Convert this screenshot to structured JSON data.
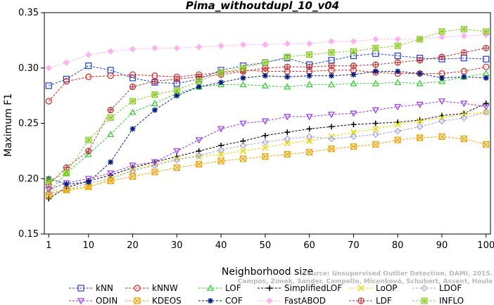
{
  "chart_data": {
    "type": "line",
    "title": "Pima_withoutdupl_10_v04",
    "xlabel": "Neighborhood size",
    "ylabel": "Maximum F1",
    "xlim": [
      0,
      101
    ],
    "ylim": [
      0.15,
      0.35
    ],
    "x_ticks": [
      1,
      10,
      20,
      30,
      40,
      50,
      60,
      70,
      80,
      90,
      100
    ],
    "y_ticks": [
      0.15,
      0.2,
      0.25,
      0.3,
      0.35
    ],
    "y_tick_labels": [
      "0.15",
      "0.20",
      "0.25",
      "0.30",
      "0.35"
    ],
    "watermark": [
      "Source: Unsupervised Outlier Detection. DAMI, 2015.",
      "Campos, Zimek, Sander, Campello, Micenková, Schubert, Assent, Houle"
    ],
    "legend_position": "bottom",
    "series": [
      {
        "name": "kNN",
        "color": "#1f3fd0",
        "marker": "square",
        "x": [
          1,
          5,
          10,
          15,
          20,
          25,
          30,
          35,
          40,
          45,
          50,
          55,
          60,
          65,
          70,
          75,
          80,
          85,
          90,
          95,
          100
        ],
        "y": [
          0.284,
          0.29,
          0.302,
          0.298,
          0.291,
          0.287,
          0.286,
          0.29,
          0.298,
          0.302,
          0.305,
          0.309,
          0.303,
          0.307,
          0.311,
          0.313,
          0.311,
          0.309,
          0.308,
          0.309,
          0.308
        ]
      },
      {
        "name": "kNNW",
        "color": "#e02020",
        "marker": "circle",
        "x": [
          1,
          5,
          10,
          15,
          20,
          25,
          30,
          35,
          40,
          45,
          50,
          55,
          60,
          65,
          70,
          75,
          80,
          85,
          90,
          95,
          100
        ],
        "y": [
          0.27,
          0.288,
          0.292,
          0.293,
          0.294,
          0.293,
          0.292,
          0.294,
          0.296,
          0.298,
          0.297,
          0.297,
          0.297,
          0.298,
          0.298,
          0.296,
          0.295,
          0.295,
          0.295,
          0.297,
          0.301
        ]
      },
      {
        "name": "LOF",
        "color": "#33cc33",
        "marker": "triangle-up",
        "x": [
          1,
          5,
          10,
          15,
          20,
          25,
          30,
          35,
          40,
          45,
          50,
          55,
          60,
          65,
          70,
          75,
          80,
          85,
          90,
          95,
          100
        ],
        "y": [
          0.188,
          0.205,
          0.222,
          0.24,
          0.26,
          0.268,
          0.277,
          0.283,
          0.285,
          0.285,
          0.284,
          0.283,
          0.285,
          0.285,
          0.286,
          0.286,
          0.287,
          0.286,
          0.288,
          0.292,
          0.295
        ]
      },
      {
        "name": "SimplifiedLOF",
        "color": "#000000",
        "marker": "plus",
        "x": [
          1,
          5,
          10,
          15,
          20,
          25,
          30,
          35,
          40,
          45,
          50,
          55,
          60,
          65,
          70,
          75,
          80,
          85,
          90,
          95,
          100
        ],
        "y": [
          0.182,
          0.192,
          0.198,
          0.203,
          0.21,
          0.215,
          0.22,
          0.225,
          0.23,
          0.234,
          0.239,
          0.242,
          0.245,
          0.247,
          0.249,
          0.25,
          0.251,
          0.253,
          0.257,
          0.259,
          0.268
        ]
      },
      {
        "name": "LoOP",
        "color": "#e8d800",
        "marker": "x",
        "x": [
          1,
          5,
          10,
          15,
          20,
          25,
          30,
          35,
          40,
          45,
          50,
          55,
          60,
          65,
          70,
          75,
          80,
          85,
          90,
          95,
          100
        ],
        "y": [
          0.19,
          0.189,
          0.192,
          0.2,
          0.208,
          0.213,
          0.218,
          0.22,
          0.222,
          0.225,
          0.228,
          0.232,
          0.234,
          0.238,
          0.242,
          0.245,
          0.249,
          0.252,
          0.255,
          0.258,
          0.26
        ]
      },
      {
        "name": "LDOF",
        "color": "#a0a0e0",
        "marker": "diamond",
        "x": [
          1,
          5,
          10,
          15,
          20,
          25,
          30,
          35,
          40,
          45,
          50,
          55,
          60,
          65,
          70,
          75,
          80,
          85,
          90,
          95,
          100
        ],
        "y": [
          0.187,
          0.19,
          0.196,
          0.2,
          0.207,
          0.212,
          0.217,
          0.221,
          0.226,
          0.23,
          0.233,
          0.236,
          0.238,
          0.236,
          0.238,
          0.24,
          0.243,
          0.247,
          0.252,
          0.255,
          0.26
        ]
      },
      {
        "name": "ODIN",
        "color": "#9933ee",
        "marker": "triangle-down",
        "x": [
          1,
          5,
          10,
          15,
          20,
          25,
          30,
          35,
          40,
          45,
          50,
          55,
          60,
          65,
          70,
          75,
          80,
          85,
          90,
          95,
          100
        ],
        "y": [
          0.19,
          0.196,
          0.2,
          0.205,
          0.212,
          0.215,
          0.225,
          0.235,
          0.245,
          0.25,
          0.252,
          0.256,
          0.256,
          0.258,
          0.259,
          0.262,
          0.265,
          0.267,
          0.27,
          0.268,
          0.265
        ]
      },
      {
        "name": "KDEOS",
        "color": "#f5a000",
        "marker": "square-x",
        "x": [
          1,
          5,
          10,
          15,
          20,
          25,
          30,
          35,
          40,
          45,
          50,
          55,
          60,
          65,
          70,
          75,
          80,
          85,
          90,
          95,
          100
        ],
        "y": [
          0.185,
          0.19,
          0.193,
          0.198,
          0.202,
          0.206,
          0.21,
          0.213,
          0.216,
          0.218,
          0.22,
          0.222,
          0.224,
          0.227,
          0.229,
          0.231,
          0.235,
          0.237,
          0.238,
          0.236,
          0.231
        ]
      },
      {
        "name": "COF",
        "color": "#001a80",
        "marker": "asterisk",
        "x": [
          1,
          5,
          10,
          15,
          20,
          25,
          30,
          35,
          40,
          45,
          50,
          55,
          60,
          65,
          70,
          75,
          80,
          85,
          90,
          95,
          100
        ],
        "y": [
          0.2,
          0.195,
          0.197,
          0.215,
          0.245,
          0.262,
          0.275,
          0.283,
          0.287,
          0.291,
          0.293,
          0.292,
          0.293,
          0.293,
          0.294,
          0.297,
          0.297,
          0.295,
          0.291,
          0.292,
          0.291
        ]
      },
      {
        "name": "FastABOD",
        "color": "#ffb0f0",
        "marker": "diamond-filled",
        "x": [
          1,
          5,
          10,
          15,
          20,
          25,
          30,
          35,
          40,
          45,
          50,
          55,
          60,
          65,
          70,
          75,
          80,
          85,
          90,
          95,
          100
        ],
        "y": [
          0.3,
          0.305,
          0.312,
          0.315,
          0.317,
          0.318,
          0.318,
          0.319,
          0.32,
          0.321,
          0.321,
          0.322,
          0.322,
          0.324,
          0.324,
          0.326,
          0.326,
          0.326,
          0.328,
          0.329,
          0.33
        ]
      },
      {
        "name": "LDF",
        "color": "#c03030",
        "marker": "circle-plus",
        "x": [
          1,
          5,
          10,
          15,
          20,
          25,
          30,
          35,
          40,
          45,
          50,
          55,
          60,
          65,
          70,
          75,
          80,
          85,
          90,
          95,
          100
        ],
        "y": [
          0.195,
          0.21,
          0.225,
          0.262,
          0.283,
          0.288,
          0.29,
          0.292,
          0.294,
          0.297,
          0.3,
          0.301,
          0.301,
          0.302,
          0.302,
          0.303,
          0.305,
          0.307,
          0.31,
          0.314,
          0.318
        ]
      },
      {
        "name": "INFLO",
        "color": "#88cc22",
        "marker": "star-box",
        "x": [
          1,
          5,
          10,
          15,
          20,
          25,
          30,
          35,
          40,
          45,
          50,
          55,
          60,
          65,
          70,
          75,
          80,
          85,
          90,
          95,
          100
        ],
        "y": [
          0.198,
          0.205,
          0.235,
          0.255,
          0.27,
          0.276,
          0.28,
          0.288,
          0.296,
          0.3,
          0.305,
          0.31,
          0.312,
          0.314,
          0.315,
          0.318,
          0.32,
          0.326,
          0.333,
          0.335,
          0.333
        ]
      }
    ]
  }
}
